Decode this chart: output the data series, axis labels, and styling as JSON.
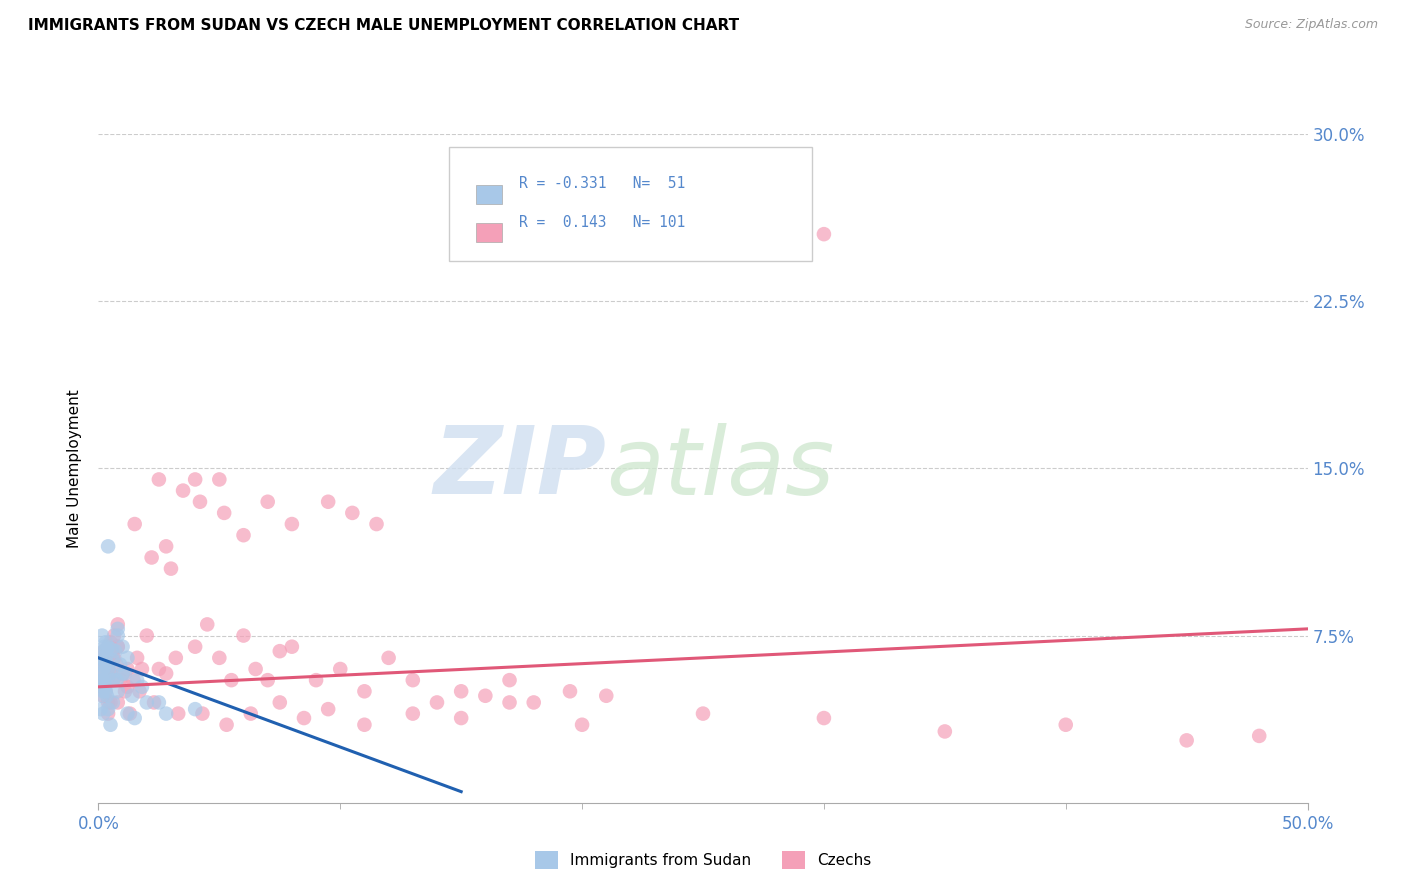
{
  "title": "IMMIGRANTS FROM SUDAN VS CZECH MALE UNEMPLOYMENT CORRELATION CHART",
  "source": "Source: ZipAtlas.com",
  "ylabel": "Male Unemployment",
  "xlim": [
    0.0,
    50.0
  ],
  "ylim": [
    0.0,
    30.0
  ],
  "legend_label1": "Immigrants from Sudan",
  "legend_label2": "Czechs",
  "r1": -0.331,
  "n1": 51,
  "r2": 0.143,
  "n2": 101,
  "blue_color": "#a8c8e8",
  "pink_color": "#f4a0b8",
  "blue_line_color": "#2060b0",
  "pink_line_color": "#e05878",
  "tick_color": "#5588cc",
  "grid_color": "#cccccc",
  "blue_line_x0": 0.0,
  "blue_line_y0": 6.5,
  "blue_line_x1": 15.0,
  "blue_line_y1": 0.5,
  "pink_line_x0": 0.0,
  "pink_line_y0": 5.2,
  "pink_line_x1": 50.0,
  "pink_line_y1": 7.8,
  "blue_scatter": [
    [
      0.15,
      6.3
    ],
    [
      0.2,
      6.8
    ],
    [
      0.25,
      7.0
    ],
    [
      0.1,
      5.8
    ],
    [
      0.3,
      6.5
    ],
    [
      0.2,
      5.5
    ],
    [
      0.3,
      7.2
    ],
    [
      0.4,
      6.0
    ],
    [
      0.25,
      5.2
    ],
    [
      0.35,
      6.9
    ],
    [
      0.15,
      7.5
    ],
    [
      0.2,
      5.0
    ],
    [
      0.3,
      6.3
    ],
    [
      0.4,
      7.0
    ],
    [
      0.25,
      6.1
    ],
    [
      0.5,
      5.8
    ],
    [
      0.6,
      6.4
    ],
    [
      0.15,
      5.5
    ],
    [
      0.35,
      4.8
    ],
    [
      0.25,
      5.3
    ],
    [
      0.8,
      7.5
    ],
    [
      0.7,
      6.8
    ],
    [
      1.0,
      7.0
    ],
    [
      0.75,
      5.5
    ],
    [
      0.9,
      6.2
    ],
    [
      1.2,
      6.5
    ],
    [
      1.1,
      5.8
    ],
    [
      0.6,
      4.5
    ],
    [
      0.8,
      5.0
    ],
    [
      0.55,
      6.9
    ],
    [
      1.6,
      5.5
    ],
    [
      1.4,
      4.8
    ],
    [
      1.8,
      5.2
    ],
    [
      1.2,
      4.0
    ],
    [
      0.8,
      7.8
    ],
    [
      0.4,
      11.5
    ],
    [
      2.5,
      4.5
    ],
    [
      2.8,
      4.0
    ],
    [
      4.0,
      4.2
    ],
    [
      0.1,
      4.2
    ],
    [
      0.15,
      4.8
    ],
    [
      0.2,
      5.8
    ],
    [
      0.3,
      5.0
    ],
    [
      0.4,
      4.2
    ],
    [
      1.0,
      5.8
    ],
    [
      2.0,
      4.5
    ],
    [
      0.1,
      6.5
    ],
    [
      0.2,
      4.0
    ],
    [
      0.5,
      3.5
    ],
    [
      1.5,
      3.8
    ],
    [
      0.6,
      5.5
    ]
  ],
  "pink_scatter": [
    [
      0.2,
      5.5
    ],
    [
      0.3,
      6.2
    ],
    [
      0.4,
      7.0
    ],
    [
      0.5,
      5.8
    ],
    [
      0.6,
      6.5
    ],
    [
      0.25,
      6.8
    ],
    [
      0.15,
      5.2
    ],
    [
      0.35,
      5.5
    ],
    [
      0.4,
      6.0
    ],
    [
      0.5,
      7.2
    ],
    [
      0.2,
      4.8
    ],
    [
      0.3,
      5.0
    ],
    [
      0.4,
      5.8
    ],
    [
      0.25,
      6.5
    ],
    [
      0.5,
      4.5
    ],
    [
      0.6,
      5.5
    ],
    [
      0.15,
      6.0
    ],
    [
      0.35,
      6.8
    ],
    [
      0.25,
      5.2
    ],
    [
      0.4,
      4.5
    ],
    [
      0.8,
      7.0
    ],
    [
      0.65,
      6.5
    ],
    [
      1.0,
      5.8
    ],
    [
      0.75,
      6.2
    ],
    [
      0.9,
      5.5
    ],
    [
      1.2,
      6.0
    ],
    [
      1.1,
      5.0
    ],
    [
      0.65,
      7.5
    ],
    [
      0.8,
      8.0
    ],
    [
      0.55,
      6.8
    ],
    [
      1.6,
      6.5
    ],
    [
      1.45,
      5.5
    ],
    [
      1.8,
      6.0
    ],
    [
      1.2,
      5.2
    ],
    [
      0.8,
      7.0
    ],
    [
      2.0,
      7.5
    ],
    [
      2.5,
      6.0
    ],
    [
      2.8,
      5.8
    ],
    [
      3.2,
      6.5
    ],
    [
      4.0,
      7.0
    ],
    [
      4.5,
      8.0
    ],
    [
      5.0,
      6.5
    ],
    [
      5.5,
      5.5
    ],
    [
      6.0,
      7.5
    ],
    [
      6.5,
      6.0
    ],
    [
      7.0,
      5.5
    ],
    [
      7.5,
      6.8
    ],
    [
      8.0,
      7.0
    ],
    [
      9.0,
      5.5
    ],
    [
      10.0,
      6.0
    ],
    [
      11.0,
      5.0
    ],
    [
      12.0,
      6.5
    ],
    [
      13.0,
      5.5
    ],
    [
      14.0,
      4.5
    ],
    [
      15.0,
      5.0
    ],
    [
      16.0,
      4.8
    ],
    [
      17.0,
      5.5
    ],
    [
      18.0,
      4.5
    ],
    [
      19.5,
      5.0
    ],
    [
      21.0,
      4.8
    ],
    [
      1.5,
      12.5
    ],
    [
      2.2,
      11.0
    ],
    [
      2.8,
      11.5
    ],
    [
      3.0,
      10.5
    ],
    [
      3.5,
      14.0
    ],
    [
      4.2,
      13.5
    ],
    [
      5.2,
      13.0
    ],
    [
      6.0,
      12.0
    ],
    [
      7.0,
      13.5
    ],
    [
      8.0,
      12.5
    ],
    [
      9.5,
      13.5
    ],
    [
      10.5,
      13.0
    ],
    [
      11.5,
      12.5
    ],
    [
      2.5,
      14.5
    ],
    [
      4.0,
      14.5
    ],
    [
      5.0,
      14.5
    ],
    [
      20.0,
      28.5
    ],
    [
      30.0,
      25.5
    ],
    [
      0.4,
      4.0
    ],
    [
      0.8,
      4.5
    ],
    [
      1.3,
      4.0
    ],
    [
      1.7,
      5.0
    ],
    [
      2.3,
      4.5
    ],
    [
      3.3,
      4.0
    ],
    [
      4.3,
      4.0
    ],
    [
      5.3,
      3.5
    ],
    [
      6.3,
      4.0
    ],
    [
      7.5,
      4.5
    ],
    [
      8.5,
      3.8
    ],
    [
      9.5,
      4.2
    ],
    [
      11.0,
      3.5
    ],
    [
      13.0,
      4.0
    ],
    [
      15.0,
      3.8
    ],
    [
      17.0,
      4.5
    ],
    [
      20.0,
      3.5
    ],
    [
      25.0,
      4.0
    ],
    [
      30.0,
      3.8
    ],
    [
      35.0,
      3.2
    ],
    [
      40.0,
      3.5
    ],
    [
      45.0,
      2.8
    ],
    [
      48.0,
      3.0
    ]
  ]
}
